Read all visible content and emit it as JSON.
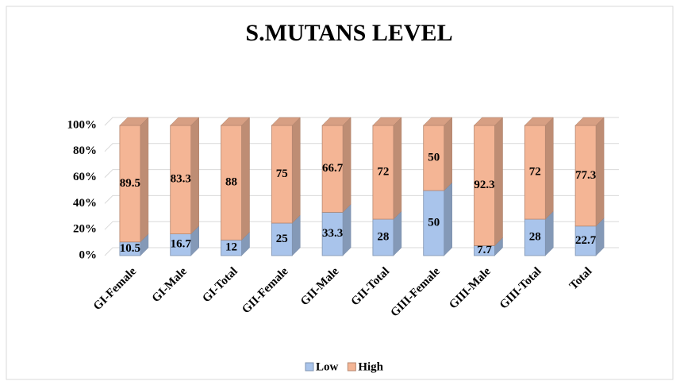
{
  "chart_data": {
    "type": "bar",
    "stacked": true,
    "title": "S.MUTANS LEVEL",
    "categories": [
      "GI-Female",
      "GI-Male",
      "GI-Total",
      "GII-Female",
      "GII-Male",
      "GII-Total",
      "GIII-Female",
      "GIII-Male",
      "GIII-Total",
      "Total"
    ],
    "series": [
      {
        "name": "Low",
        "color": "#a9c4eb",
        "values": [
          10.5,
          16.7,
          12,
          25,
          33.3,
          28,
          50,
          7.7,
          28,
          22.7
        ]
      },
      {
        "name": "High",
        "color": "#f4b595",
        "values": [
          89.5,
          83.3,
          88,
          75,
          66.7,
          72,
          50,
          92.3,
          72,
          77.3
        ]
      }
    ],
    "ylim": [
      0,
      100
    ],
    "yticks": [
      {
        "value": 0,
        "label": "0%"
      },
      {
        "value": 20,
        "label": "20%"
      },
      {
        "value": 40,
        "label": "40%"
      },
      {
        "value": 60,
        "label": "60%"
      },
      {
        "value": 80,
        "label": "80%"
      },
      {
        "value": 100,
        "label": "100%"
      }
    ],
    "grid": true,
    "legend": "bottom"
  }
}
